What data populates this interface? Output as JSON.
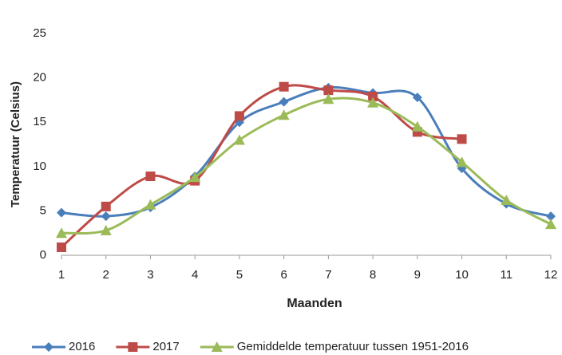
{
  "chart_data": {
    "type": "line",
    "x_label": "Maanden",
    "y_label": "Temperatuur (Celsius)",
    "x": [
      1,
      2,
      3,
      4,
      5,
      6,
      7,
      8,
      9,
      10,
      11,
      12
    ],
    "xlim": [
      1,
      12
    ],
    "xticks": [
      1,
      2,
      3,
      4,
      5,
      6,
      7,
      8,
      9,
      10,
      11,
      12
    ],
    "ylim": [
      0,
      25
    ],
    "yticks": [
      0,
      5,
      10,
      15,
      20,
      25
    ],
    "grid": false,
    "smooth": true,
    "legend": "bottom",
    "series": [
      {
        "name": "2016",
        "color": "#4a7ebb",
        "marker": "diamond",
        "values": [
          4.8,
          4.4,
          5.4,
          8.9,
          15.0,
          17.3,
          18.9,
          18.3,
          17.8,
          9.8,
          5.8,
          4.4
        ]
      },
      {
        "name": "2017",
        "color": "#be4b48",
        "marker": "square",
        "values": [
          0.9,
          5.5,
          8.9,
          8.4,
          15.7,
          19.0,
          18.6,
          17.9,
          13.9,
          13.1,
          null,
          null
        ]
      },
      {
        "name": "Gemiddelde temperatuur tussen 1951-2016",
        "color": "#9bbb59",
        "marker": "triangle",
        "values": [
          2.5,
          2.8,
          5.7,
          8.8,
          13.0,
          15.8,
          17.6,
          17.2,
          14.5,
          10.5,
          6.2,
          3.5
        ]
      }
    ]
  }
}
